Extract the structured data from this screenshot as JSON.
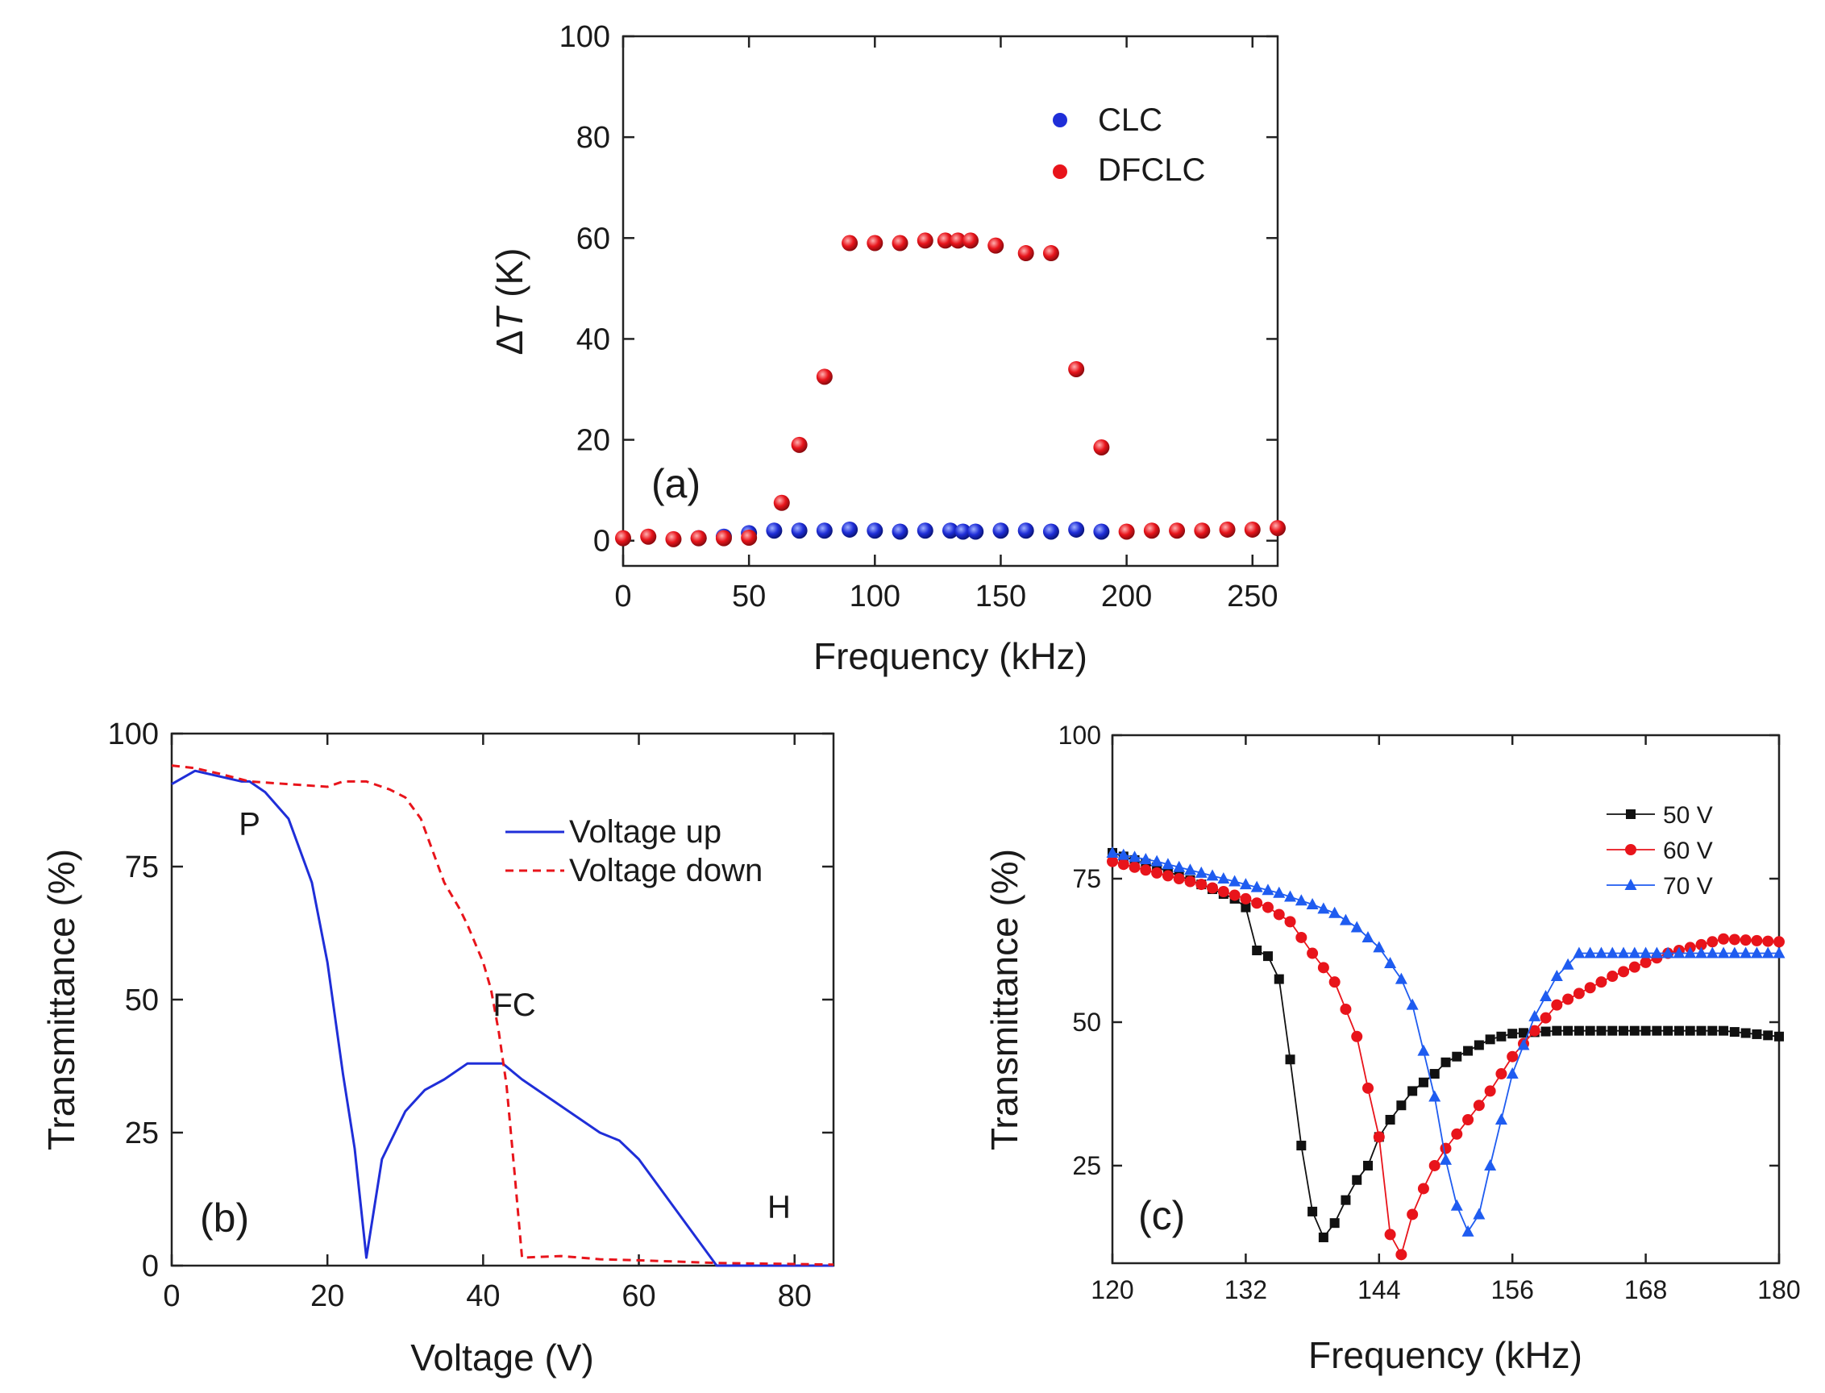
{
  "chart_data": [
    {
      "id": "a",
      "type": "scatter",
      "panel_label": "(a)",
      "xlabel": "Frequency (kHz)",
      "ylabel_prefix": "Δ",
      "ylabel_var": "T",
      "ylabel_suffix": " (K)",
      "xlim": [
        0,
        260
      ],
      "ylim": [
        -5,
        100
      ],
      "xticks": [
        0,
        50,
        100,
        150,
        200,
        250
      ],
      "yticks": [
        0,
        20,
        40,
        60,
        80,
        100
      ],
      "legend_position": "top-right",
      "series": [
        {
          "name": "CLC",
          "color": "#1f2ed8",
          "x": [
            30,
            40,
            50,
            60,
            70,
            80,
            90,
            100,
            110,
            120,
            130,
            135,
            140,
            150,
            160,
            170,
            180,
            190
          ],
          "y": [
            0.5,
            0.8,
            1.5,
            2.0,
            2.0,
            2.0,
            2.2,
            2.0,
            1.8,
            2.0,
            2.0,
            1.8,
            1.8,
            2.0,
            2.0,
            1.8,
            2.2,
            1.8
          ]
        },
        {
          "name": "DFCLC",
          "color": "#e8141b",
          "x": [
            0,
            10,
            20,
            30,
            40,
            50,
            63,
            70,
            80,
            90,
            100,
            110,
            120,
            128,
            133,
            138,
            148,
            160,
            170,
            180,
            190,
            200,
            210,
            220,
            230,
            240,
            250,
            260
          ],
          "y": [
            0.5,
            0.8,
            0.3,
            0.5,
            0.5,
            0.6,
            7.5,
            19,
            32.5,
            59,
            59,
            59,
            59.5,
            59.5,
            59.5,
            59.5,
            58.5,
            57,
            57,
            34,
            18.5,
            1.8,
            2.0,
            2.0,
            2.0,
            2.2,
            2.2,
            2.5
          ]
        }
      ]
    },
    {
      "id": "b",
      "type": "line",
      "panel_label": "(b)",
      "xlabel": "Voltage (V)",
      "ylabel": "Transmittance (%)",
      "xlim": [
        0,
        85
      ],
      "ylim": [
        0,
        100
      ],
      "xticks": [
        0,
        20,
        40,
        60,
        80
      ],
      "yticks": [
        0,
        25,
        50,
        75,
        100
      ],
      "legend_position": "top-right",
      "annotations": [
        {
          "text": "P",
          "x": 10,
          "y": 81
        },
        {
          "text": "FC",
          "x": 44,
          "y": 47
        },
        {
          "text": "H",
          "x": 78,
          "y": 9
        }
      ],
      "series": [
        {
          "name": "Voltage up",
          "color": "#1f2ed8",
          "style": "solid",
          "x": [
            0,
            3,
            6,
            9,
            10,
            12,
            15,
            18,
            20,
            22,
            23.5,
            25,
            27,
            30,
            32.5,
            35,
            38,
            40,
            42.5,
            45,
            50,
            55,
            57.5,
            60,
            65,
            70,
            75,
            80,
            85
          ],
          "y": [
            90.5,
            93,
            92,
            91,
            91,
            89,
            84,
            72,
            57,
            36,
            22,
            1.5,
            20,
            29,
            33,
            35,
            38,
            38,
            38,
            35,
            30,
            25,
            23.5,
            20,
            10,
            0,
            0,
            0,
            0
          ]
        },
        {
          "name": "Voltage down",
          "color": "#e8141b",
          "style": "dashed",
          "x": [
            0,
            3,
            6,
            10,
            15,
            20,
            22,
            25,
            28,
            30,
            32,
            35,
            37,
            38,
            40,
            41,
            42,
            43,
            44,
            45,
            50,
            55,
            60,
            70,
            85
          ],
          "y": [
            94,
            93.5,
            92.5,
            91,
            90.5,
            90,
            91,
            91,
            89.5,
            88,
            84,
            72,
            67,
            64,
            57,
            52,
            44,
            34,
            18,
            1.5,
            1.8,
            1.2,
            1.0,
            0.5,
            0.2
          ]
        }
      ]
    },
    {
      "id": "c",
      "type": "line",
      "panel_label": "(c)",
      "xlabel": "Frequency (kHz)",
      "ylabel": "Transmittance (%)",
      "xlim": [
        120,
        180
      ],
      "ylim": [
        8,
        100
      ],
      "xticks": [
        120,
        132,
        144,
        156,
        168,
        180
      ],
      "yticks": [
        25,
        50,
        75,
        100
      ],
      "legend_position": "top-right",
      "series": [
        {
          "name": "50 V",
          "color": "#111111",
          "marker": "square",
          "x": [
            120,
            124,
            128,
            131,
            132,
            133,
            134,
            135,
            136,
            137,
            138,
            139,
            140,
            141,
            142,
            143,
            144,
            145,
            146,
            147,
            148,
            149,
            150,
            152,
            154,
            156,
            160,
            165,
            170,
            175,
            180
          ],
          "y": [
            79.5,
            77,
            74,
            71.5,
            70,
            62.5,
            61.5,
            57.5,
            43.5,
            28.5,
            17,
            12.5,
            15,
            19,
            22.5,
            25,
            30,
            33,
            35.5,
            38,
            39.5,
            41,
            43,
            45,
            47,
            48,
            48.5,
            48.5,
            48.5,
            48.5,
            47.5
          ]
        },
        {
          "name": "60 V",
          "color": "#e8141b",
          "marker": "circle",
          "x": [
            120,
            124,
            128,
            132,
            134,
            136,
            138,
            140,
            142,
            143,
            144,
            145,
            146,
            147,
            148,
            149,
            150,
            152,
            154,
            156,
            160,
            165,
            170,
            175,
            180
          ],
          "y": [
            78,
            76,
            74,
            71.5,
            70,
            67.5,
            62,
            57,
            47.5,
            38.5,
            30,
            13,
            9.5,
            16.5,
            21,
            25,
            28,
            33,
            38,
            44,
            53,
            58,
            62,
            64.5,
            64
          ]
        },
        {
          "name": "70 V",
          "color": "#1f5cf0",
          "marker": "triangle",
          "x": [
            120,
            124,
            128,
            132,
            135,
            138,
            140,
            142,
            144,
            146,
            147,
            148,
            149,
            150,
            151,
            152,
            153,
            154,
            156,
            158,
            160,
            162,
            165,
            170,
            175,
            180
          ],
          "y": [
            79.5,
            78,
            76,
            74,
            72.5,
            70.5,
            69,
            66.5,
            63,
            57.5,
            53,
            45,
            37,
            26,
            18,
            13.5,
            16.5,
            25,
            41,
            51,
            58,
            62,
            62,
            62,
            62,
            62
          ]
        }
      ]
    }
  ]
}
